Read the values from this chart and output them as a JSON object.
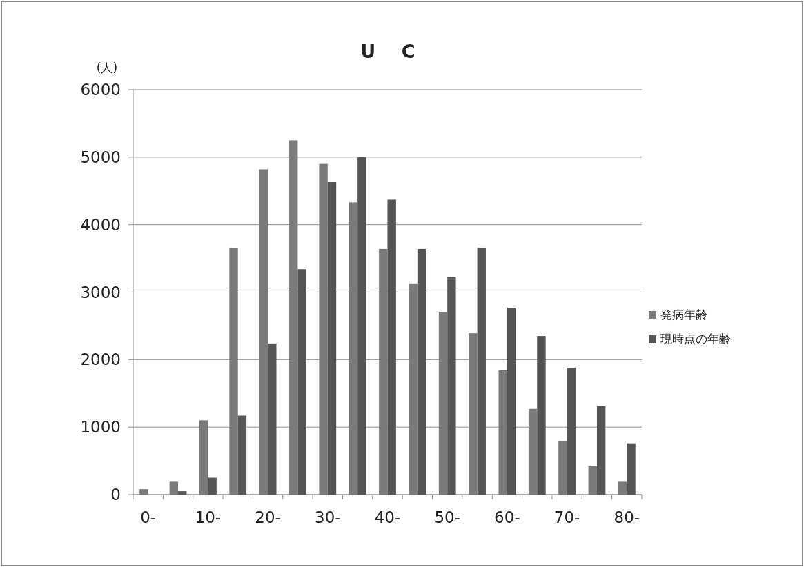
{
  "chart_data": {
    "type": "bar",
    "title": "U    C",
    "ylabel": "(人)",
    "categories": [
      "0-",
      null,
      "10-",
      null,
      "20-",
      null,
      "30-",
      null,
      "40-",
      null,
      "50-",
      null,
      "60-",
      null,
      "70-",
      null,
      "80-"
    ],
    "series": [
      {
        "name": "発病年齢",
        "color": "#7a7a7a",
        "values": [
          80,
          190,
          1100,
          3650,
          4820,
          5250,
          4900,
          4330,
          3640,
          3130,
          2700,
          2390,
          1840,
          1270,
          790,
          420,
          190
        ]
      },
      {
        "name": "現時点の年齢",
        "color": "#555555",
        "values": [
          0,
          50,
          250,
          1170,
          2240,
          3340,
          4630,
          5000,
          4370,
          3640,
          3220,
          3660,
          2770,
          2350,
          1880,
          1310,
          760
        ]
      }
    ],
    "ylim": [
      0,
      6000
    ],
    "yticks": [
      0,
      1000,
      2000,
      3000,
      4000,
      5000,
      6000
    ],
    "grid": "y",
    "legend": "right"
  }
}
